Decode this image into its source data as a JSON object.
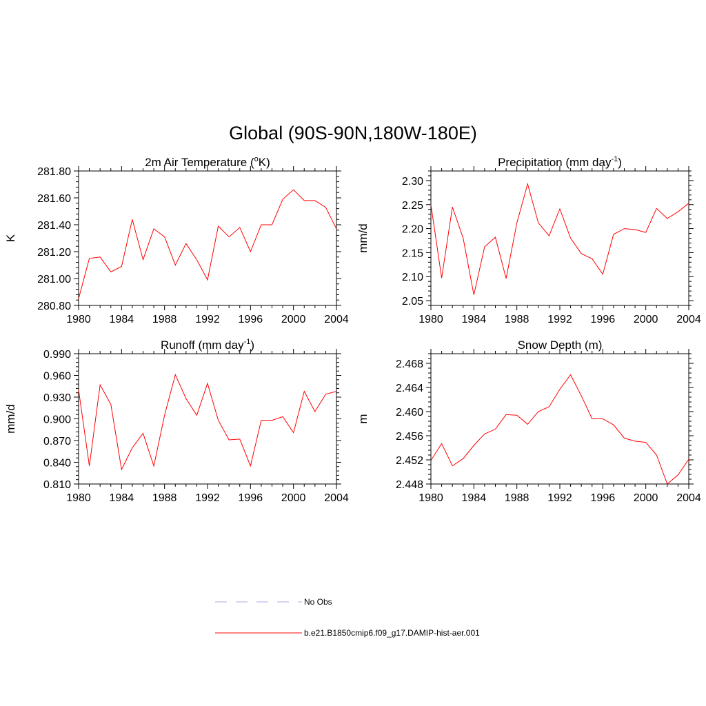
{
  "figure": {
    "title": "Global (90S-90N,180W-180E)"
  },
  "legend": {
    "entries": [
      {
        "label": "No Obs",
        "color": "#aaaaee",
        "dash": true
      },
      {
        "label": "b.e21.B1850cmip6.f09_g17.DAMIP-hist-aer.001",
        "color": "#ff0000",
        "dash": false
      }
    ]
  },
  "chart_data": [
    {
      "type": "line",
      "title": "2m Air Temperature (",
      "title_sup": "o",
      "title_tail": "K)",
      "xlabel": "",
      "ylabel": "K",
      "xlim": [
        1980,
        2004
      ],
      "ylim": [
        280.8,
        281.8
      ],
      "xticks": [
        1980,
        1984,
        1988,
        1992,
        1996,
        2000,
        2004
      ],
      "yticks": [
        "280.80",
        "281.00",
        "281.20",
        "281.40",
        "281.60",
        "281.80"
      ],
      "ytick_values": [
        280.8,
        281.0,
        281.2,
        281.4,
        281.6,
        281.8
      ],
      "series": [
        {
          "color": "#ff0000",
          "x": [
            1980,
            1981,
            1982,
            1983,
            1984,
            1985,
            1986,
            1987,
            1988,
            1989,
            1990,
            1991,
            1992,
            1993,
            1994,
            1995,
            1996,
            1997,
            1998,
            1999,
            2000,
            2001,
            2002,
            2003,
            2004
          ],
          "y": [
            280.85,
            281.15,
            281.16,
            281.05,
            281.09,
            281.44,
            281.14,
            281.37,
            281.31,
            281.1,
            281.26,
            281.14,
            280.99,
            281.39,
            281.31,
            281.38,
            281.2,
            281.4,
            281.4,
            281.59,
            281.66,
            281.58,
            281.58,
            281.53,
            281.37
          ]
        }
      ]
    },
    {
      "type": "line",
      "title": "Precipitation (mm day",
      "title_sup": "-1",
      "title_tail": ")",
      "xlabel": "",
      "ylabel": "mm/d",
      "xlim": [
        1980,
        2004
      ],
      "ylim": [
        2.04,
        2.32
      ],
      "xticks": [
        1980,
        1984,
        1988,
        1992,
        1996,
        2000,
        2004
      ],
      "yticks": [
        "2.05",
        "2.10",
        "2.15",
        "2.20",
        "2.25",
        "2.30"
      ],
      "ytick_values": [
        2.05,
        2.1,
        2.15,
        2.2,
        2.25,
        2.3
      ],
      "series": [
        {
          "color": "#ff0000",
          "x": [
            1980,
            1981,
            1982,
            1983,
            1984,
            1985,
            1986,
            1987,
            1988,
            1989,
            1990,
            1991,
            1992,
            1993,
            1994,
            1995,
            1996,
            1997,
            1998,
            1999,
            2000,
            2001,
            2002,
            2003,
            2004
          ],
          "y": [
            2.25,
            2.097,
            2.245,
            2.18,
            2.062,
            2.162,
            2.182,
            2.096,
            2.212,
            2.293,
            2.212,
            2.185,
            2.241,
            2.18,
            2.148,
            2.137,
            2.105,
            2.188,
            2.2,
            2.198,
            2.192,
            2.242,
            2.221,
            2.235,
            2.253
          ]
        }
      ]
    },
    {
      "type": "line",
      "title": "Runoff (mm day",
      "title_sup": "-1",
      "title_tail": ")",
      "xlabel": "",
      "ylabel": "mm/d",
      "xlim": [
        1980,
        2004
      ],
      "ylim": [
        0.81,
        0.99
      ],
      "xticks": [
        1980,
        1984,
        1988,
        1992,
        1996,
        2000,
        2004
      ],
      "yticks": [
        "0.810",
        "0.840",
        "0.870",
        "0.900",
        "0.930",
        "0.960",
        "0.990"
      ],
      "ytick_values": [
        0.81,
        0.84,
        0.87,
        0.9,
        0.93,
        0.96,
        0.99
      ],
      "series": [
        {
          "color": "#ff0000",
          "x": [
            1980,
            1981,
            1982,
            1983,
            1984,
            1985,
            1986,
            1987,
            1988,
            1989,
            1990,
            1991,
            1992,
            1993,
            1994,
            1995,
            1996,
            1997,
            1998,
            1999,
            2000,
            2001,
            2002,
            2003,
            2004
          ],
          "y": [
            0.94,
            0.835,
            0.947,
            0.92,
            0.83,
            0.86,
            0.88,
            0.835,
            0.905,
            0.961,
            0.928,
            0.905,
            0.949,
            0.898,
            0.871,
            0.872,
            0.835,
            0.898,
            0.898,
            0.903,
            0.881,
            0.938,
            0.91,
            0.934,
            0.938
          ]
        }
      ]
    },
    {
      "type": "line",
      "title": "Snow Depth (m)",
      "title_sup": "",
      "title_tail": "",
      "xlabel": "",
      "ylabel": "m",
      "xlim": [
        1980,
        2004
      ],
      "ylim": [
        2.448,
        2.4696
      ],
      "xticks": [
        1980,
        1984,
        1988,
        1992,
        1996,
        2000,
        2004
      ],
      "yticks": [
        "2.448",
        "2.452",
        "2.456",
        "2.460",
        "2.464",
        "2.468"
      ],
      "ytick_values": [
        2.448,
        2.452,
        2.456,
        2.46,
        2.464,
        2.468
      ],
      "series": [
        {
          "color": "#ff0000",
          "x": [
            1980,
            1981,
            1982,
            1983,
            1984,
            1985,
            1986,
            1987,
            1988,
            1989,
            1990,
            1991,
            1992,
            1993,
            1994,
            1995,
            1996,
            1997,
            1998,
            1999,
            2000,
            2001,
            2002,
            2003,
            2004
          ],
          "y": [
            2.4519,
            2.4547,
            2.451,
            2.4522,
            2.4544,
            2.4563,
            2.4571,
            2.4595,
            2.4594,
            2.4579,
            2.46,
            2.4608,
            2.4637,
            2.4661,
            2.4626,
            2.4588,
            2.4588,
            2.4578,
            2.4556,
            2.4551,
            2.4549,
            2.4528,
            2.448,
            2.4495,
            2.4521
          ]
        }
      ]
    }
  ]
}
